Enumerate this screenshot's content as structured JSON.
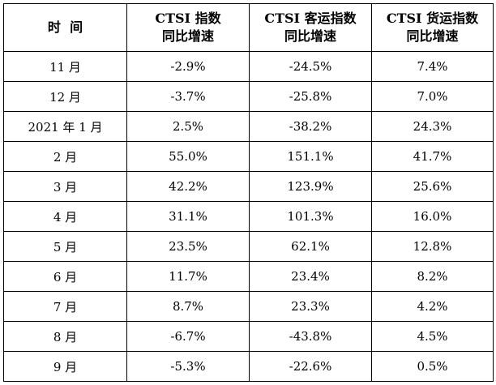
{
  "table": {
    "headers": [
      {
        "line1": "时  间",
        "line2": ""
      },
      {
        "line1": "CTSI 指数",
        "line2": "同比增速"
      },
      {
        "line1": "CTSI 客运指数",
        "line2": "同比增速"
      },
      {
        "line1": "CTSI 货运指数",
        "line2": "同比增速"
      }
    ],
    "rows": [
      [
        "11 月",
        "-2.9%",
        "-24.5%",
        "7.4%"
      ],
      [
        "12 月",
        "-3.7%",
        "-25.8%",
        "7.0%"
      ],
      [
        "2021 年 1 月",
        "2.5%",
        "-38.2%",
        "24.3%"
      ],
      [
        "2 月",
        "55.0%",
        "151.1%",
        "41.7%"
      ],
      [
        "3 月",
        "42.2%",
        "123.9%",
        "25.6%"
      ],
      [
        "4 月",
        "31.1%",
        "101.3%",
        "16.0%"
      ],
      [
        "5 月",
        "23.5%",
        "62.1%",
        "12.8%"
      ],
      [
        "6 月",
        "11.7%",
        "23.4%",
        "8.2%"
      ],
      [
        "7 月",
        "8.7%",
        "23.3%",
        "4.2%"
      ],
      [
        "8 月",
        "-6.7%",
        "-43.8%",
        "4.5%"
      ],
      [
        "9 月",
        "-5.3%",
        "-22.6%",
        "0.5%"
      ]
    ]
  }
}
